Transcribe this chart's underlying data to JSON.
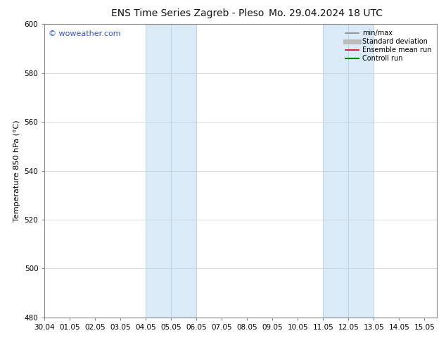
{
  "title_left": "ENS Time Series Zagreb - Pleso",
  "title_right": "Mo. 29.04.2024 18 UTC",
  "ylabel": "Temperature 850 hPa (°C)",
  "ylim": [
    480,
    600
  ],
  "yticks": [
    480,
    500,
    520,
    540,
    560,
    580,
    600
  ],
  "xlim": [
    0.0,
    15.5
  ],
  "xtick_labels": [
    "30.04",
    "01.05",
    "02.05",
    "03.05",
    "04.05",
    "05.05",
    "06.05",
    "07.05",
    "08.05",
    "09.05",
    "10.05",
    "11.05",
    "12.05",
    "13.05",
    "14.05",
    "15.05"
  ],
  "xtick_positions": [
    0,
    1,
    2,
    3,
    4,
    5,
    6,
    7,
    8,
    9,
    10,
    11,
    12,
    13,
    14,
    15
  ],
  "shaded_bands": [
    {
      "x_start": 4.0,
      "x_end": 6.0,
      "color": "#daeaf6"
    },
    {
      "x_start": 11.0,
      "x_end": 13.0,
      "color": "#daeaf6"
    }
  ],
  "band_lines": [
    {
      "x": 4.0,
      "color": "#b8d4e8",
      "lw": 0.7
    },
    {
      "x": 5.0,
      "color": "#b8d4e8",
      "lw": 0.7
    },
    {
      "x": 6.0,
      "color": "#b8d4e8",
      "lw": 0.7
    },
    {
      "x": 11.0,
      "color": "#b8d4e8",
      "lw": 0.7
    },
    {
      "x": 12.0,
      "color": "#b8d4e8",
      "lw": 0.7
    },
    {
      "x": 13.0,
      "color": "#b8d4e8",
      "lw": 0.7
    }
  ],
  "watermark_text": "© woweather.com",
  "watermark_color": "#3355cc",
  "legend_items": [
    {
      "label": "min/max",
      "color": "#888888",
      "lw": 1.2
    },
    {
      "label": "Standard deviation",
      "color": "#bbbbbb",
      "lw": 5
    },
    {
      "label": "Ensemble mean run",
      "color": "#dd0000",
      "lw": 1.2
    },
    {
      "label": "Controll run",
      "color": "#008800",
      "lw": 1.5
    }
  ],
  "bg_color": "#ffffff",
  "grid_color": "#cccccc",
  "spine_color": "#888888",
  "title_fontsize": 10,
  "tick_fontsize": 7.5,
  "ylabel_fontsize": 8,
  "legend_fontsize": 7,
  "watermark_fontsize": 8
}
